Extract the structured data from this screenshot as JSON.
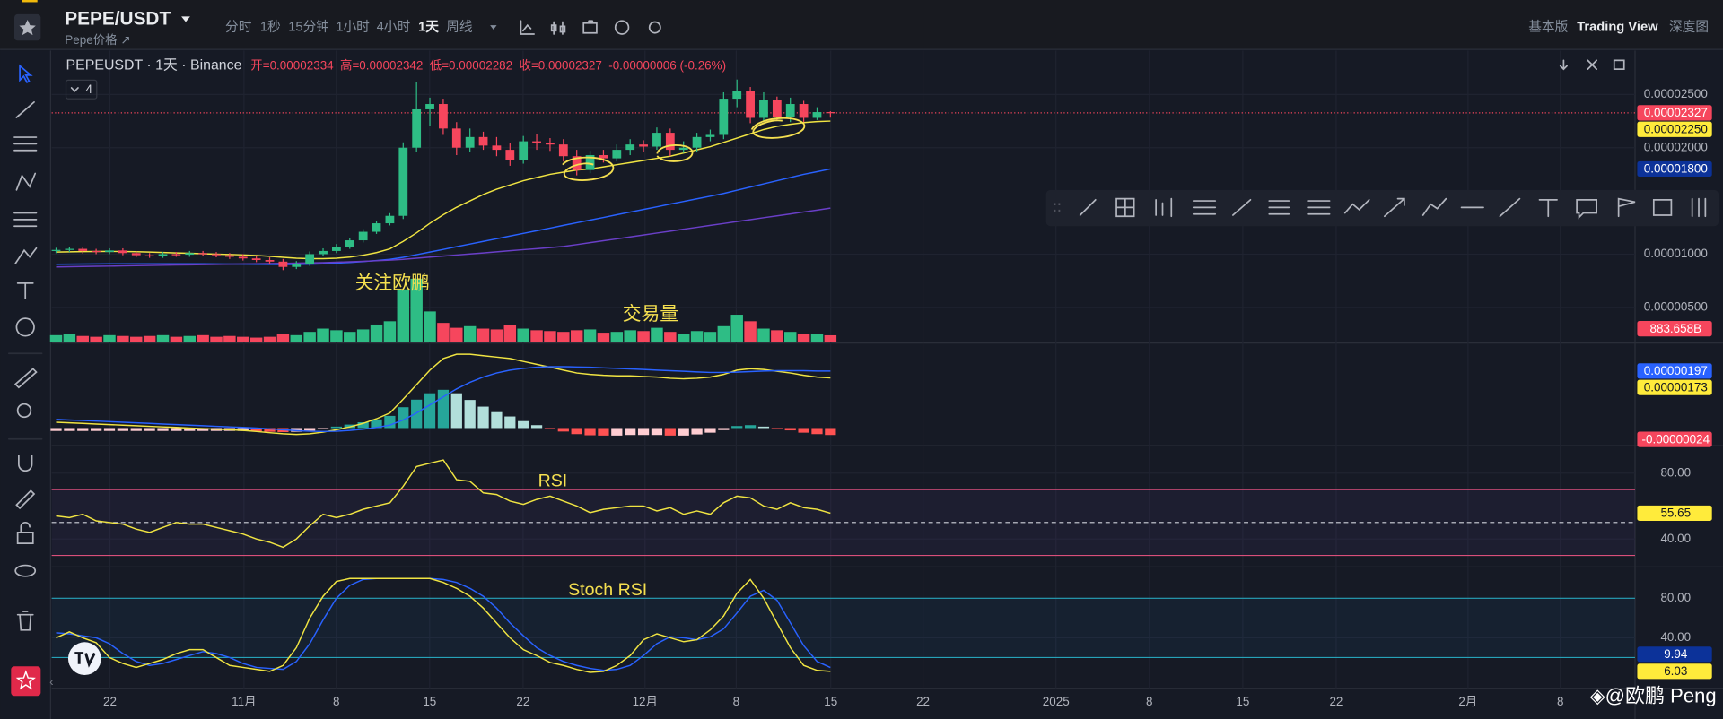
{
  "header": {
    "symbol": "PEPE/USDT",
    "subtitle": "Pepe价格 ↗",
    "intervals": [
      "分时",
      "1秒",
      "15分钟",
      "1小时",
      "4小时",
      "1天",
      "周线"
    ],
    "views": [
      "基本版",
      "Trading View",
      "深度图"
    ]
  },
  "chart_data": {
    "type": "candlestick",
    "legend": {
      "symbol": "PEPEUSDT · 1天 · Binance",
      "items": [
        "开=0.00002334",
        "高=0.00002342",
        "低=0.00002282",
        "收=0.00002327",
        "-0.00000006 (-0.26%)"
      ],
      "collapsed_indicators": 4
    },
    "xticks": [
      "22",
      "11月",
      "8",
      "15",
      "22",
      "12月",
      "8",
      "15",
      "22",
      "2025",
      "8",
      "15",
      "22",
      "2月",
      "8"
    ],
    "up_color": "#2ebd85",
    "down_color": "#f6465d",
    "open": [
      1.03e-05,
      1.04e-05,
      1.05e-05,
      1.03e-05,
      1.02e-05,
      1.035e-05,
      1.01e-05,
      9.9e-06,
      9.85e-06,
      1e-05,
      9.95e-06,
      1.01e-05,
      1e-05,
      9.9e-06,
      9.75e-06,
      9.6e-06,
      9.45e-06,
      9.3e-06,
      8.8e-06,
      9.1e-06,
      1e-05,
      1.03e-05,
      1.07e-05,
      1.13e-05,
      1.21e-05,
      1.29e-05,
      1.36e-05,
      2e-05,
      2.36e-05,
      2.41e-05,
      2.18e-05,
      2e-05,
      2.1e-05,
      2.02e-05,
      1.98e-05,
      1.88e-05,
      2.06e-05,
      2.04e-05,
      2.03e-05,
      1.92e-05,
      1.79e-05,
      1.93e-05,
      1.9e-05,
      1.98e-05,
      2.03e-05,
      2.01e-05,
      2.14e-05,
      1.98e-05,
      2e-05,
      2.1e-05,
      2.12e-05,
      2.46e-05,
      2.53e-05,
      2.28e-05,
      2.45e-05,
      2.29e-05,
      2.41e-05,
      2.28e-05,
      2.334e-05
    ],
    "high": [
      1.06e-05,
      1.07e-05,
      1.07e-05,
      1.05e-05,
      1.055e-05,
      1.055e-05,
      1.03e-05,
      1.01e-05,
      1.02e-05,
      1.02e-05,
      1.03e-05,
      1.03e-05,
      1.02e-05,
      1.01e-05,
      1e-05,
      9.85e-06,
      9.7e-06,
      9.55e-06,
      9.35e-06,
      1.025e-05,
      1.055e-05,
      1.095e-05,
      1.155e-05,
      1.235e-05,
      1.315e-05,
      1.385e-05,
      2.05e-05,
      2.62e-05,
      2.47e-05,
      2.46e-05,
      2.24e-05,
      2.18e-05,
      2.15e-05,
      2.1e-05,
      2.04e-05,
      2.11e-05,
      2.13e-05,
      2.09e-05,
      2.08e-05,
      1.98e-05,
      1.97e-05,
      1.98e-05,
      2.03e-05,
      2.08e-05,
      2.07e-05,
      2.19e-05,
      2.18e-05,
      2.06e-05,
      2.14e-05,
      2.17e-05,
      2.52e-05,
      2.64e-05,
      2.57e-05,
      2.52e-05,
      2.48e-05,
      2.47e-05,
      2.44e-05,
      2.38e-05,
      2.342e-05
    ],
    "low": [
      1.01e-05,
      1.02e-05,
      1.005e-05,
      1e-05,
      1e-05,
      9.9e-06,
      9.7e-06,
      9.65e-06,
      9.65e-06,
      9.75e-06,
      9.75e-06,
      9.8e-06,
      9.7e-06,
      9.55e-06,
      9.4e-06,
      9.25e-06,
      9.05e-06,
      8.5e-06,
      8.6e-06,
      8.9e-06,
      9.8e-06,
      1.01e-05,
      1.05e-05,
      1.11e-05,
      1.19e-05,
      1.27e-05,
      1.33e-05,
      1.96e-05,
      2.2e-05,
      2.12e-05,
      1.93e-05,
      1.96e-05,
      1.98e-05,
      1.92e-05,
      1.83e-05,
      1.85e-05,
      1.98e-05,
      1.97e-05,
      1.87e-05,
      1.74e-05,
      1.76e-05,
      1.86e-05,
      1.87e-05,
      1.93e-05,
      1.96e-05,
      1.98e-05,
      1.92e-05,
      1.95e-05,
      1.96e-05,
      2.06e-05,
      2.08e-05,
      2.38e-05,
      2.23e-05,
      2.25e-05,
      2.25e-05,
      2.24e-05,
      2.24e-05,
      2.26e-05,
      2.282e-05
    ],
    "close": [
      1.04e-05,
      1.05e-05,
      1.03e-05,
      1.02e-05,
      1.035e-05,
      1.01e-05,
      9.9e-06,
      9.85e-06,
      1e-05,
      9.95e-06,
      1.01e-05,
      1e-05,
      9.9e-06,
      9.75e-06,
      9.6e-06,
      9.45e-06,
      9.3e-06,
      8.8e-06,
      9.1e-06,
      1e-05,
      1.03e-05,
      1.07e-05,
      1.13e-05,
      1.21e-05,
      1.29e-05,
      1.36e-05,
      2e-05,
      2.36e-05,
      2.41e-05,
      2.18e-05,
      2e-05,
      2.1e-05,
      2.02e-05,
      1.98e-05,
      1.88e-05,
      2.06e-05,
      2.04e-05,
      2.03e-05,
      1.92e-05,
      1.79e-05,
      1.93e-05,
      1.9e-05,
      1.98e-05,
      2.03e-05,
      2.01e-05,
      2.14e-05,
      1.98e-05,
      2e-05,
      2.1e-05,
      2.12e-05,
      2.46e-05,
      2.53e-05,
      2.28e-05,
      2.45e-05,
      2.29e-05,
      2.41e-05,
      2.28e-05,
      2.334e-05,
      2.327e-05
    ],
    "last_price_label": "0.00002327",
    "ylim": [
      2.94e-06,
      2.923e-05
    ],
    "yticks": [
      {
        "value": 2.5e-05,
        "label": "0.00002500"
      },
      {
        "value": 2e-05,
        "label": "0.00002000"
      },
      {
        "value": 1e-05,
        "label": "0.00001000"
      },
      {
        "value": 5e-06,
        "label": "0.00000500"
      }
    ],
    "grid": true,
    "series": [
      {
        "color": "#f0e442",
        "price_tag": "0.00002250",
        "values": [
          1.02e-05,
          1.022e-05,
          1.024e-05,
          1.025e-05,
          1.026e-05,
          1.025e-05,
          1.023e-05,
          1.02e-05,
          1.016e-05,
          1.012e-05,
          1.008e-05,
          1.004e-05,
          1e-05,
          9.97e-06,
          9.93e-06,
          9.88e-06,
          9.8e-06,
          9.7e-06,
          9.62e-06,
          9.58e-06,
          9.58e-06,
          9.62e-06,
          9.72e-06,
          9.9e-06,
          1.015e-05,
          1.05e-05,
          1.12e-05,
          1.2e-05,
          1.29e-05,
          1.37e-05,
          1.44e-05,
          1.5e-05,
          1.56e-05,
          1.61e-05,
          1.65e-05,
          1.69e-05,
          1.72e-05,
          1.75e-05,
          1.77e-05,
          1.79e-05,
          1.8e-05,
          1.82e-05,
          1.84e-05,
          1.86e-05,
          1.88e-05,
          1.9e-05,
          1.92e-05,
          1.95e-05,
          1.98e-05,
          2.01e-05,
          2.05e-05,
          2.09e-05,
          2.13e-05,
          2.17e-05,
          2.2e-05,
          2.22e-05,
          2.235e-05,
          2.245e-05,
          2.25e-05
        ]
      },
      {
        "color": "#2962ff",
        "price_tag": "0.00001800",
        "values": [
          9.05e-06,
          9.06e-06,
          9.07e-06,
          9.08e-06,
          9.09e-06,
          9.1e-06,
          9.1e-06,
          9.1e-06,
          9.1e-06,
          9.1e-06,
          9.1e-06,
          9.09e-06,
          9.08e-06,
          9.07e-06,
          9.06e-06,
          9.05e-06,
          9.04e-06,
          9.03e-06,
          9.04e-06,
          9.06e-06,
          9.1e-06,
          9.16e-06,
          9.22e-06,
          9.3e-06,
          9.4e-06,
          9.52e-06,
          9.7e-06,
          9.95e-06,
          1.02e-05,
          1.045e-05,
          1.07e-05,
          1.095e-05,
          1.12e-05,
          1.145e-05,
          1.17e-05,
          1.195e-05,
          1.22e-05,
          1.245e-05,
          1.27e-05,
          1.295e-05,
          1.32e-05,
          1.345e-05,
          1.37e-05,
          1.395e-05,
          1.42e-05,
          1.445e-05,
          1.47e-05,
          1.495e-05,
          1.52e-05,
          1.545e-05,
          1.57e-05,
          1.6e-05,
          1.63e-05,
          1.66e-05,
          1.69e-05,
          1.72e-05,
          1.75e-05,
          1.775e-05,
          1.8e-05
        ]
      },
      {
        "color": "#6a3fc8",
        "values": [
          8.8e-06,
          8.82e-06,
          8.84e-06,
          8.86e-06,
          8.88e-06,
          8.9e-06,
          8.92e-06,
          8.94e-06,
          8.96e-06,
          8.98e-06,
          9e-06,
          9.02e-06,
          9.04e-06,
          9.06e-06,
          9.08e-06,
          9.1e-06,
          9.12e-06,
          9.14e-06,
          9.16e-06,
          9.18e-06,
          9.2e-06,
          9.24e-06,
          9.28e-06,
          9.32e-06,
          9.38e-06,
          9.44e-06,
          9.52e-06,
          9.62e-06,
          9.72e-06,
          9.82e-06,
          9.92e-06,
          1.002e-05,
          1.012e-05,
          1.022e-05,
          1.032e-05,
          1.042e-05,
          1.052e-05,
          1.062e-05,
          1.072e-05,
          1.09e-05,
          1.108e-05,
          1.126e-05,
          1.144e-05,
          1.162e-05,
          1.18e-05,
          1.198e-05,
          1.216e-05,
          1.234e-05,
          1.252e-05,
          1.27e-05,
          1.288e-05,
          1.306e-05,
          1.324e-05,
          1.342e-05,
          1.36e-05,
          1.378e-05,
          1.396e-05,
          1.414e-05,
          1.432e-05
        ]
      }
    ],
    "annotations": [
      "关注欧鹏"
    ],
    "volume": {
      "label": "交易量",
      "price_tag": "883.658B",
      "ylim": [
        0,
        9000
      ],
      "values": [
        900,
        1000,
        800,
        700,
        900,
        800,
        700,
        800,
        900,
        700,
        800,
        900,
        700,
        800,
        700,
        600,
        700,
        1100,
        900,
        1300,
        1700,
        1500,
        1300,
        1600,
        2200,
        2600,
        6500,
        7800,
        3800,
        2400,
        1800,
        2000,
        1700,
        1600,
        2100,
        1700,
        1500,
        1400,
        1300,
        1500,
        1600,
        1200,
        1300,
        1500,
        1400,
        1800,
        1300,
        1100,
        1400,
        1300,
        2000,
        3400,
        2600,
        1700,
        1500,
        1300,
        1100,
        1000,
        883.658
      ]
    },
    "macd": {
      "ylim": [
        -5.7e-07,
        2.84e-06
      ],
      "macd": {
        "color": "#f0e442",
        "price_tag": "0.00000173",
        "values": [
          2e-07,
          1.8e-07,
          1.6e-07,
          1.4e-07,
          1.2e-07,
          1e-07,
          8e-08,
          6e-08,
          4e-08,
          2e-08,
          0,
          -2e-08,
          -4e-08,
          -6e-08,
          -8e-08,
          -1.2e-07,
          -1.6e-07,
          -2e-07,
          -2.2e-07,
          -2e-07,
          -1.4e-07,
          -6e-08,
          4e-08,
          1.6e-07,
          3.2e-07,
          5.2e-07,
          1e-06,
          1.5e-06,
          2e-06,
          2.4e-06,
          2.55e-06,
          2.55e-06,
          2.5e-06,
          2.45e-06,
          2.4e-06,
          2.3e-06,
          2.2e-06,
          2.1e-06,
          2e-06,
          1.9e-06,
          1.85e-06,
          1.82e-06,
          1.8e-06,
          1.8e-06,
          1.78e-06,
          1.76e-06,
          1.72e-06,
          1.7e-06,
          1.72e-06,
          1.76e-06,
          1.85e-06,
          2e-06,
          2.05e-06,
          2.02e-06,
          1.96e-06,
          1.9e-06,
          1.82e-06,
          1.76e-06,
          1.73e-06
        ]
      },
      "signal": {
        "color": "#2962ff",
        "price_tag": "0.00000197",
        "values": [
          3e-07,
          2.8e-07,
          2.6e-07,
          2.4e-07,
          2.2e-07,
          2e-07,
          1.8e-07,
          1.6e-07,
          1.4e-07,
          1.2e-07,
          1e-07,
          8e-08,
          6e-08,
          4e-08,
          2e-08,
          0,
          -3e-08,
          -6e-08,
          -9e-08,
          -1.1e-07,
          -1.2e-07,
          -1.1e-07,
          -8e-08,
          -4e-08,
          2e-08,
          1e-07,
          2.8e-07,
          5.2e-07,
          8e-07,
          1.08e-06,
          1.35e-06,
          1.58e-06,
          1.76e-06,
          1.9e-06,
          2e-06,
          2.06e-06,
          2.1e-06,
          2.12e-06,
          2.12e-06,
          2.11e-06,
          2.1e-06,
          2.08e-06,
          2.06e-06,
          2.04e-06,
          2.02e-06,
          2e-06,
          1.98e-06,
          1.96e-06,
          1.94e-06,
          1.92e-06,
          1.92e-06,
          1.93e-06,
          1.95e-06,
          1.97e-06,
          1.98e-06,
          1.98e-06,
          1.98e-06,
          1.97e-06,
          1.97e-06
        ]
      },
      "histogram": {
        "price_tag": "-0.00000024",
        "values": [
          -1e-07,
          -1e-07,
          -1e-07,
          -1e-07,
          -1e-07,
          -1e-07,
          -1e-07,
          -1e-07,
          -1e-07,
          -1e-07,
          -1e-07,
          -1e-07,
          -1e-07,
          -1e-07,
          -1e-07,
          -1.2e-07,
          -1.3e-07,
          -1.4e-07,
          -1.3e-07,
          -9e-08,
          -2e-08,
          5e-08,
          1.2e-07,
          2e-07,
          3e-07,
          4.2e-07,
          7.2e-07,
          9.8e-07,
          1.2e-06,
          1.32e-06,
          1.2e-06,
          9.7e-07,
          7.4e-07,
          5.5e-07,
          4e-07,
          2.4e-07,
          1e-07,
          -2e-08,
          -1.2e-07,
          -2.1e-07,
          -2.5e-07,
          -2.6e-07,
          -2.6e-07,
          -2.4e-07,
          -2.4e-07,
          -2.4e-07,
          -2.6e-07,
          -2.6e-07,
          -2.2e-07,
          -1.6e-07,
          -7e-08,
          7e-08,
          1e-07,
          5e-08,
          -2e-08,
          -8e-08,
          -1.6e-07,
          -2.1e-07,
          -2.4e-07
        ]
      }
    },
    "rsi": {
      "label": "RSI",
      "color": "#f0e442",
      "price_tag": "55.65",
      "ylim": [
        23.33,
        96
      ],
      "yticks": [
        {
          "value": 80,
          "label": "80.00"
        },
        {
          "value": 40,
          "label": "40.00"
        }
      ],
      "bands": [
        70,
        30
      ],
      "midline": 50,
      "values": [
        54,
        53,
        55,
        51,
        50,
        49,
        46,
        44,
        47,
        50,
        49,
        49,
        47,
        45,
        43,
        40,
        38,
        35,
        40,
        48,
        55,
        53,
        55,
        58,
        60,
        62,
        72,
        84,
        86,
        88,
        76,
        75,
        68,
        67,
        63,
        61,
        64,
        66,
        63,
        60,
        56,
        58,
        59,
        60,
        60,
        57,
        59,
        55,
        57,
        55,
        62,
        66,
        65,
        60,
        58,
        62,
        59,
        58,
        55.65
      ]
    },
    "stoch_rsi": {
      "label": "Stoch RSI",
      "ylim": [
        -11.1,
        111.1
      ],
      "yticks": [
        {
          "value": 80,
          "label": "80.00"
        },
        {
          "value": 40,
          "label": "40.00"
        }
      ],
      "bands": [
        80,
        20
      ],
      "k": {
        "color": "#f0e442",
        "price_tag": "6.03",
        "values": [
          40,
          46,
          40,
          35,
          20,
          14,
          10,
          14,
          18,
          24,
          28,
          28,
          20,
          12,
          10,
          8,
          6,
          12,
          30,
          60,
          82,
          97,
          100,
          100,
          100,
          100,
          100,
          100,
          100,
          96,
          90,
          82,
          70,
          55,
          40,
          28,
          22,
          15,
          12,
          8,
          5,
          6,
          12,
          22,
          38,
          44,
          40,
          36,
          38,
          48,
          62,
          85,
          99,
          80,
          55,
          30,
          12,
          7,
          6.03
        ]
      },
      "d": {
        "color": "#2962ff",
        "price_tag": "9.94",
        "values": [
          45,
          44,
          42,
          40,
          34,
          24,
          16,
          12,
          14,
          18,
          22,
          26,
          24,
          20,
          14,
          10,
          9,
          8,
          16,
          34,
          58,
          80,
          93,
          99,
          100,
          100,
          100,
          100,
          100,
          99,
          96,
          90,
          82,
          70,
          55,
          42,
          30,
          22,
          16,
          12,
          9,
          7,
          8,
          12,
          22,
          34,
          41,
          40,
          38,
          41,
          49,
          65,
          82,
          88,
          78,
          55,
          32,
          16,
          9.94
        ]
      }
    }
  },
  "watermark": "◈@欧鹏 Peng"
}
